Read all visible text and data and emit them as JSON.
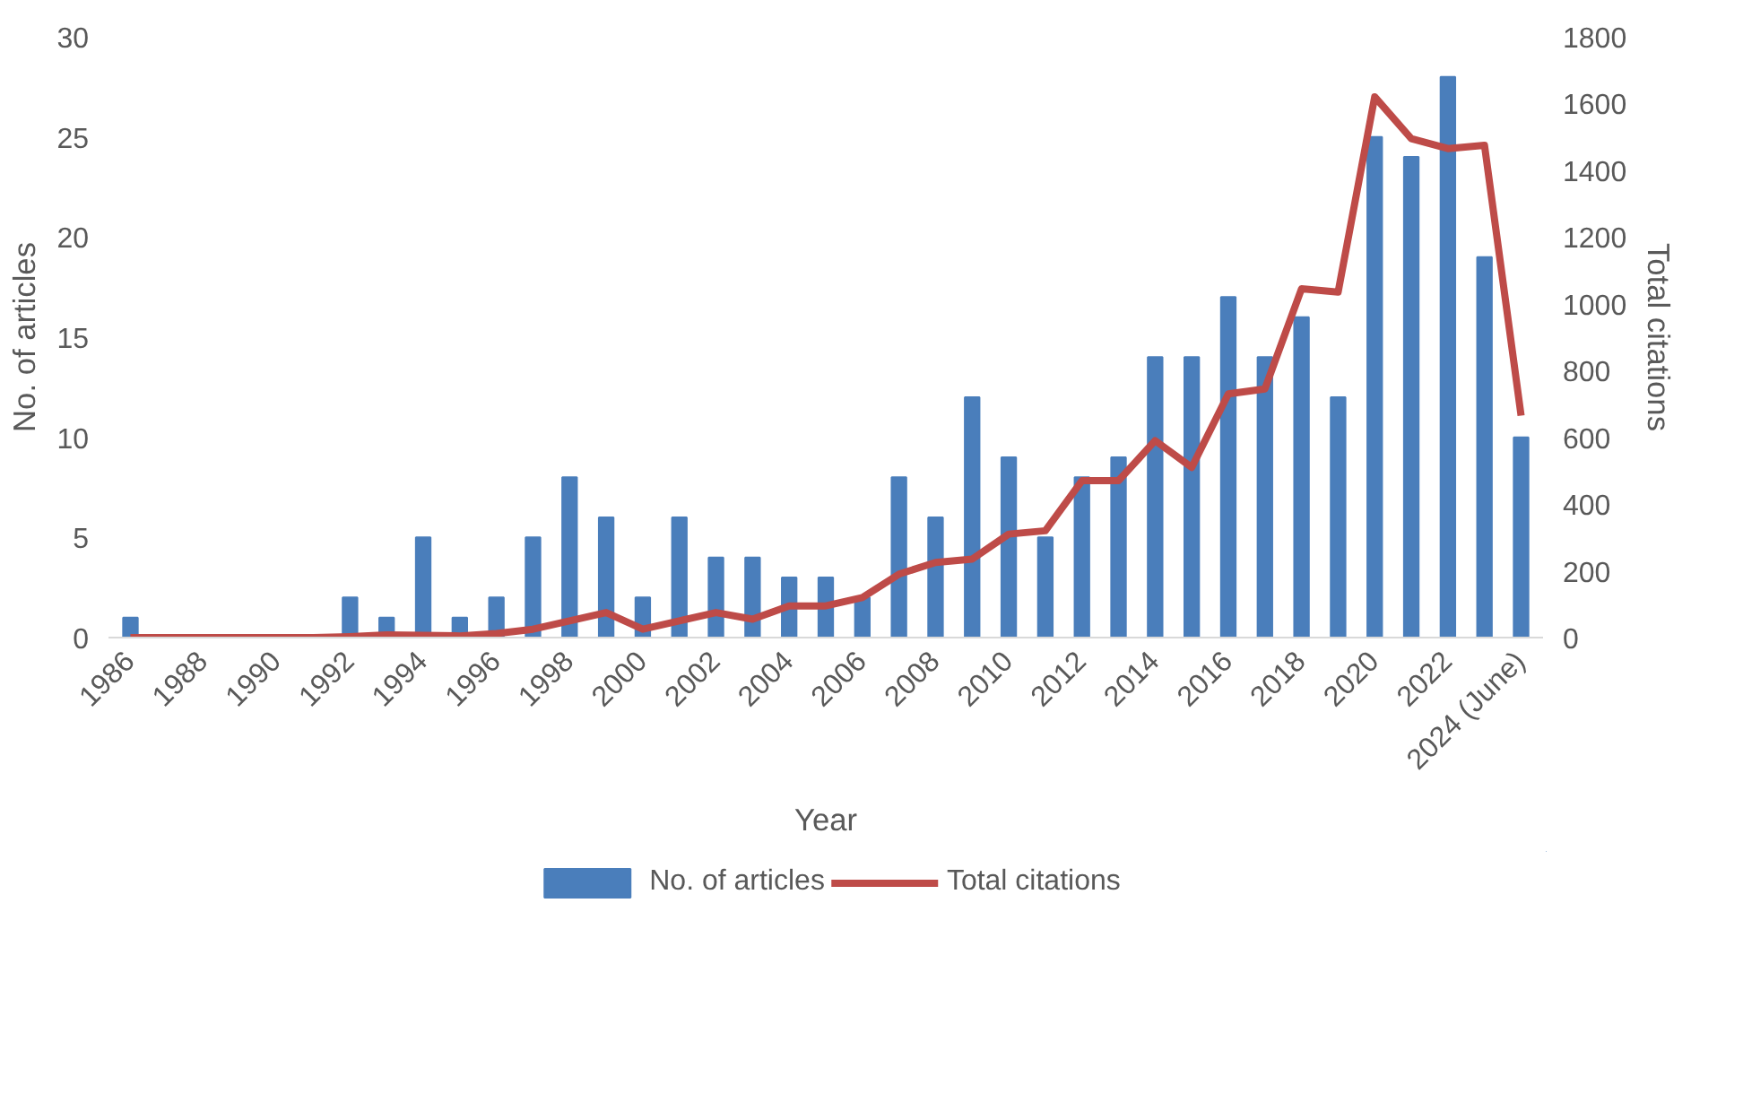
{
  "chart_data": {
    "type": "bar",
    "xlabel": "Year",
    "ylabel": "No. of articles",
    "y2label": "Total citations",
    "categories": [
      "1986",
      null,
      "1988",
      null,
      "1990",
      null,
      "1992",
      null,
      "1994",
      null,
      "1996",
      null,
      "1998",
      null,
      "2000",
      null,
      "2002",
      null,
      "2004",
      null,
      "2006",
      null,
      "2008",
      null,
      "2010",
      null,
      "2012",
      null,
      "2014",
      null,
      "2016",
      null,
      "2018",
      null,
      "2020",
      null,
      "2022",
      null,
      "2024 (June)"
    ],
    "series": [
      {
        "name": "No. of articles",
        "color": "#4a7ebb",
        "values": [
          1,
          0,
          0,
          0,
          0,
          0,
          2,
          1,
          5,
          1,
          2,
          5,
          8,
          6,
          2,
          6,
          4,
          4,
          3,
          3,
          2,
          8,
          6,
          12,
          9,
          5,
          8,
          9,
          14,
          14,
          17,
          14,
          16,
          12,
          25,
          24,
          28,
          19,
          10
        ]
      },
      {
        "name": "Total citations",
        "type": "line",
        "axis": "y2",
        "color": "#be4b48",
        "values": [
          0,
          0,
          0,
          0,
          0,
          0,
          3,
          8,
          7,
          5,
          12,
          25,
          50,
          75,
          25,
          50,
          75,
          55,
          95,
          95,
          120,
          190,
          225,
          235,
          310,
          320,
          470,
          470,
          590,
          510,
          730,
          745,
          1045,
          1035,
          1620,
          1495,
          1465,
          1475,
          665
        ]
      }
    ],
    "ylim": [
      0,
      30
    ],
    "yticks": [
      0,
      5,
      10,
      15,
      20,
      25,
      30
    ],
    "y2lim": [
      0,
      1800
    ],
    "y2ticks": [
      0,
      200,
      400,
      600,
      800,
      1000,
      1200,
      1400,
      1600,
      1800
    ],
    "grid": false,
    "legend": "bottom",
    "marker": "none",
    "line_style": "solid"
  }
}
